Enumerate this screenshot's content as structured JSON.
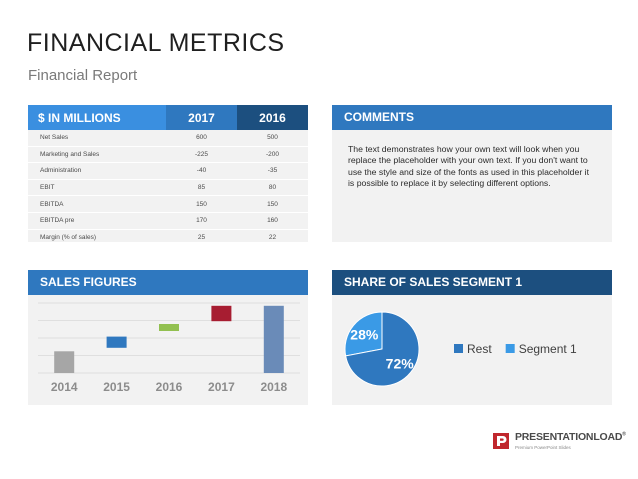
{
  "slide": {
    "title": "FINANCIAL METRICS",
    "subtitle": "Financial Report"
  },
  "table": {
    "header_label": "$ IN MILLIONS",
    "header_2017": "2017",
    "header_2016": "2016",
    "rows": [
      {
        "label": "Net Sales",
        "v2017": "600",
        "v2016": "500"
      },
      {
        "label": "Marketing and Sales",
        "v2017": "-225",
        "v2016": "-200"
      },
      {
        "label": "Administration",
        "v2017": "-40",
        "v2016": "-35"
      },
      {
        "label": "EBIT",
        "v2017": "85",
        "v2016": "80"
      },
      {
        "label": "EBITDA",
        "v2017": "150",
        "v2016": "150"
      },
      {
        "label": "EBITDA pre",
        "v2017": "170",
        "v2016": "160"
      },
      {
        "label": "Margin (% of sales)",
        "v2017": "25",
        "v2016": "22"
      }
    ]
  },
  "comments": {
    "header": "COMMENTS",
    "body": "The text demonstrates how your own text will look when you replace the placeholder with your own text. If you don't want to use the style and size of the fonts as used in this placeholder it is possible to replace it by selecting different options."
  },
  "sales": {
    "header": "SALES FIGURES"
  },
  "pie": {
    "header": "SHARE OF SALES SEGMENT 1"
  },
  "logo": {
    "brand_main": "PRESENTATION",
    "brand_load": "LOAD",
    "trademark": "®",
    "tagline": "Premium PowerPoint Slides",
    "accent_color": "#c0272d"
  },
  "colors": {
    "blue": "#2f78bf",
    "dark_blue": "#1c4f7f",
    "light_blue": "#3a8fe0",
    "panel_bg": "#f2f2f2"
  },
  "chart_data": [
    {
      "type": "bar",
      "title": "SALES FIGURES",
      "categories": [
        "2014",
        "2015",
        "2016",
        "2017",
        "2018"
      ],
      "ylim": [
        0,
        100
      ],
      "series": [
        {
          "bars": [
            {
              "low": 0,
              "high": 31,
              "color": "#a6a6a6"
            },
            {
              "low": 36,
              "high": 52,
              "color": "#2f78bf"
            },
            {
              "low": 60,
              "high": 70,
              "color": "#92c050"
            },
            {
              "low": 74,
              "high": 96,
              "color": "#a71d31"
            },
            {
              "low": 0,
              "high": 96,
              "color": "#6a8bb8"
            }
          ]
        }
      ],
      "grid": true,
      "legend": "none"
    },
    {
      "type": "pie",
      "title": "SHARE OF SALES SEGMENT 1",
      "slices": [
        {
          "label": "Rest",
          "value": 72,
          "display": "72%",
          "color": "#2f78bf"
        },
        {
          "label": "Segment 1",
          "value": 28,
          "display": "28%",
          "color": "#3a9ae6"
        }
      ],
      "legend": "right"
    }
  ]
}
